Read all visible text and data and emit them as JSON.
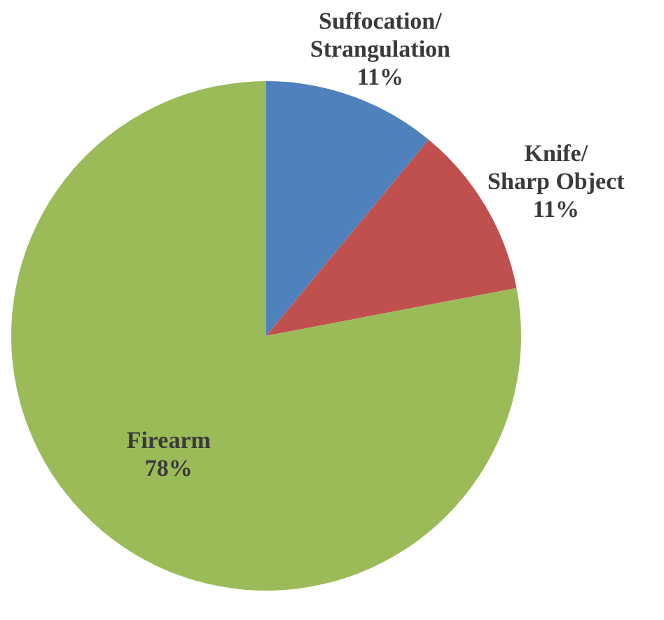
{
  "chart_data": {
    "type": "pie",
    "categories": [
      "Suffocation/Strangulation",
      "Knife/Sharp Object",
      "Firearm"
    ],
    "values": [
      11,
      11,
      78
    ],
    "colors": [
      "#4f81bd",
      "#c0504d",
      "#9bbb59"
    ],
    "value_labels": [
      "11%",
      "11%",
      "78%"
    ]
  }
}
